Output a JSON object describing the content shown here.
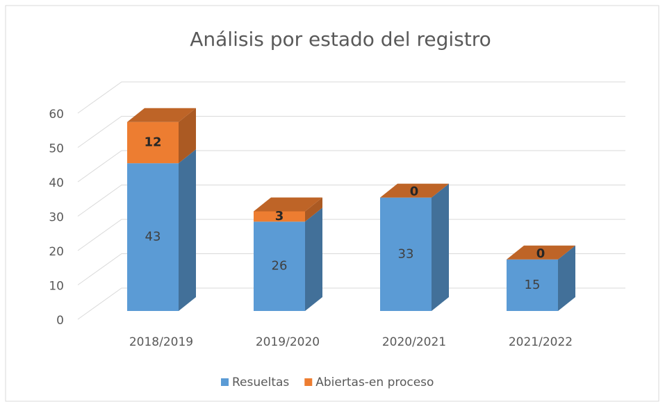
{
  "chart_data": {
    "type": "bar3d_stacked",
    "title": "Análisis por estado del registro",
    "categories": [
      "2018/2019",
      "2019/2020",
      "2020/2021",
      "2021/2022"
    ],
    "series": [
      {
        "name": "Resueltas",
        "color": "#5b9bd5",
        "values": [
          43,
          26,
          33,
          15
        ]
      },
      {
        "name": "Abiertas-en proceso",
        "color": "#ed7d31",
        "values": [
          12,
          3,
          0,
          0
        ]
      }
    ],
    "ylim": [
      0,
      60
    ],
    "yticks": [
      0,
      10,
      20,
      30,
      40,
      50,
      60
    ],
    "grid": true,
    "legend": "bottom"
  }
}
